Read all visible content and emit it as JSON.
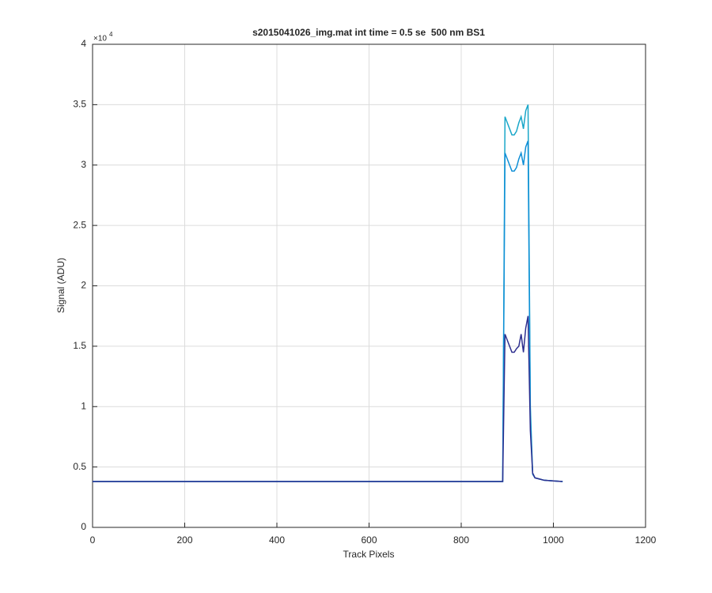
{
  "chart_data": {
    "type": "line",
    "title": "s2015041026_img.mat int time = 0.5 se  500 nm BS1",
    "x_label": "Track Pixels",
    "y_label": "Signal (ADU)",
    "y_multiplier": {
      "base": "×10",
      "exponent": "4"
    },
    "x": [
      0,
      885,
      890,
      895,
      900,
      905,
      910,
      915,
      920,
      925,
      930,
      935,
      940,
      945,
      950,
      955,
      960,
      970,
      980,
      1000,
      1020
    ],
    "series": [
      {
        "color": "#1aa7c9",
        "values": [
          3800,
          3800,
          3800,
          34000,
          33500,
          33000,
          32500,
          32500,
          32800,
          33500,
          34000,
          33000,
          34500,
          35000,
          10000,
          4500,
          4100,
          4000,
          3900,
          3850,
          3800
        ]
      },
      {
        "color": "#0f8fd6",
        "values": [
          3800,
          3800,
          3800,
          31000,
          30500,
          30000,
          29500,
          29500,
          29800,
          30500,
          31000,
          30000,
          31500,
          32000,
          9000,
          4400,
          4100,
          4000,
          3900,
          3850,
          3800
        ]
      },
      {
        "color": "#2e2f8f",
        "values": [
          3800,
          3800,
          3800,
          16000,
          15500,
          15000,
          14500,
          14500,
          14800,
          15000,
          16000,
          14500,
          16500,
          17500,
          8000,
          4500,
          4100,
          4000,
          3900,
          3850,
          3800
        ]
      }
    ],
    "xlim": [
      0,
      1200
    ],
    "xticks": [
      0,
      200,
      400,
      600,
      800,
      1000,
      1200
    ],
    "ylim": [
      0,
      40000
    ],
    "yticks": [
      0,
      {
        "value": 5000,
        "label": "0.5"
      },
      {
        "value": 10000,
        "label": "1"
      },
      {
        "value": 15000,
        "label": "1.5"
      },
      {
        "value": 20000,
        "label": "2"
      },
      {
        "value": 25000,
        "label": "2.5"
      },
      {
        "value": 30000,
        "label": "3"
      },
      {
        "value": 35000,
        "label": "3.5"
      },
      {
        "value": 40000,
        "label": "4"
      }
    ],
    "grid": true
  }
}
